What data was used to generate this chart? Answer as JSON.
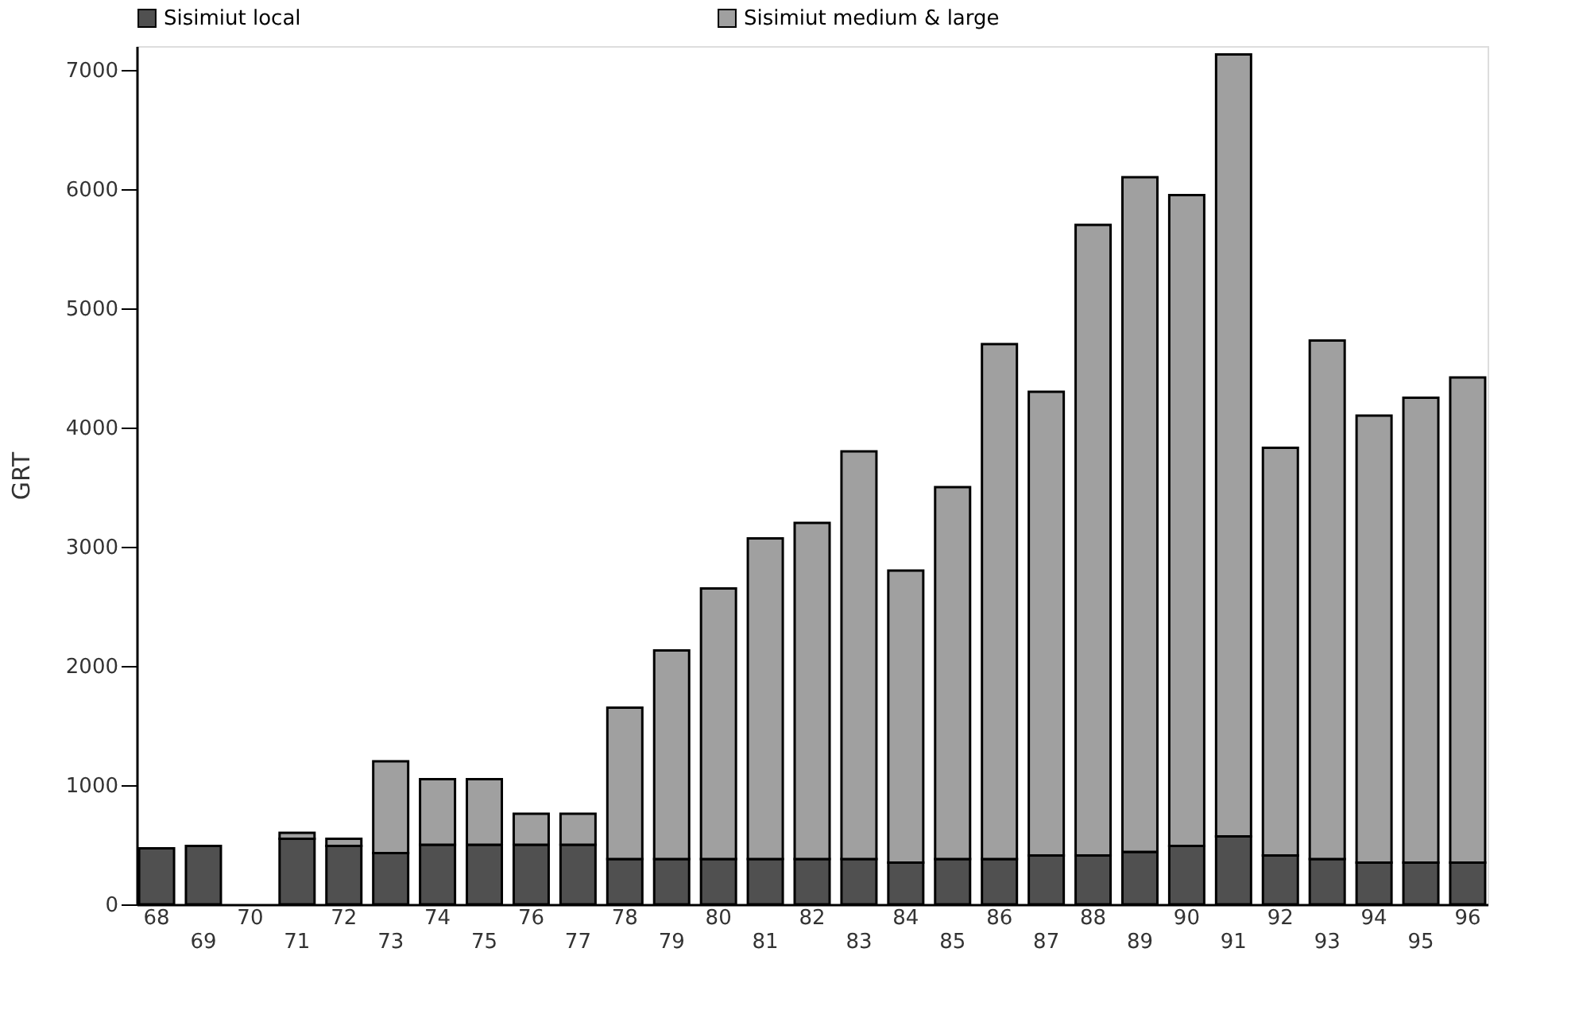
{
  "chart_data": {
    "type": "bar",
    "stacked": true,
    "ylabel": "GRT",
    "ylim": [
      0,
      7200
    ],
    "yticks": [
      0,
      1000,
      2000,
      3000,
      4000,
      5000,
      6000,
      7000
    ],
    "grid": false,
    "legend": "top",
    "categories": [
      "68",
      "69",
      "70",
      "71",
      "72",
      "73",
      "74",
      "75",
      "76",
      "77",
      "78",
      "79",
      "80",
      "81",
      "82",
      "83",
      "84",
      "85",
      "86",
      "87",
      "88",
      "89",
      "90",
      "91",
      "92",
      "93",
      "94",
      "95",
      "96"
    ],
    "series": [
      {
        "name": "Sisimiut local",
        "color": "#505050",
        "values": [
          470,
          490,
          0,
          550,
          490,
          430,
          500,
          500,
          500,
          500,
          380,
          380,
          380,
          380,
          380,
          380,
          350,
          380,
          380,
          410,
          410,
          440,
          490,
          570,
          410,
          380,
          350,
          350,
          350
        ]
      },
      {
        "name": "Sisimiut medium & large",
        "color": "#a0a0a0",
        "values": [
          0,
          0,
          0,
          50,
          60,
          770,
          550,
          550,
          260,
          260,
          1270,
          1750,
          2270,
          2690,
          2820,
          3420,
          2450,
          3120,
          4320,
          3890,
          5290,
          5660,
          5460,
          6560,
          3420,
          4350,
          3750,
          3900,
          4070
        ]
      }
    ]
  }
}
